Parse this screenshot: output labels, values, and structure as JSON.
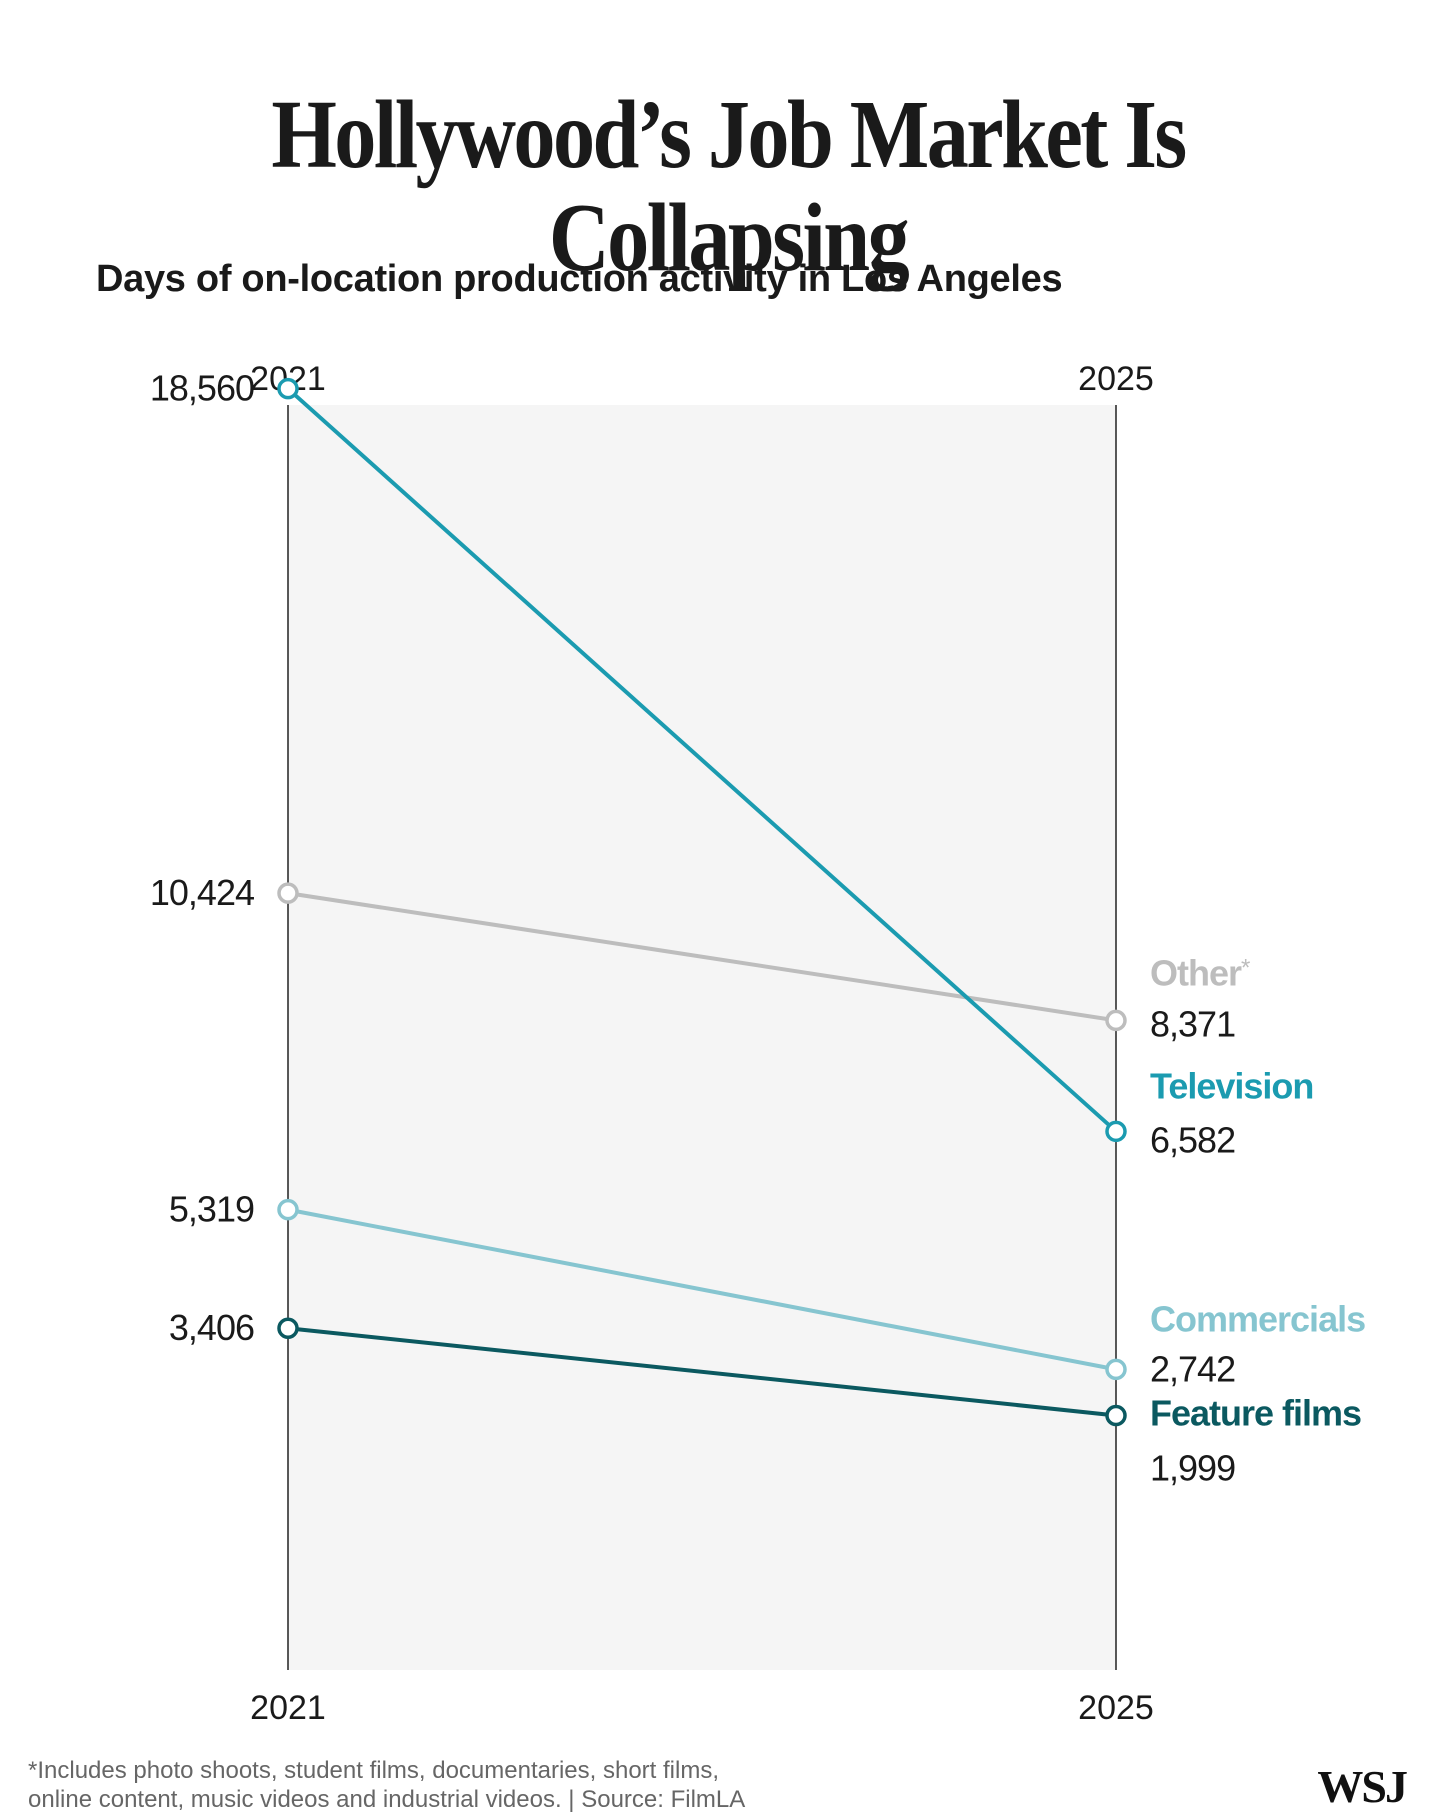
{
  "title": "Hollywood’s Job Market Is Collapsing",
  "subtitle": "Days of on-location production activity in Los Angeles",
  "footnote": {
    "line1": "*Includes photo shoots, student films, documentaries, short films,",
    "line2": "online content, music videos and industrial videos. | Source: FilmLA"
  },
  "logo": "WSJ",
  "chart_data": {
    "type": "line",
    "x": [
      "2021",
      "2025"
    ],
    "ylim": [
      0,
      19200
    ],
    "grid": false,
    "series": [
      {
        "name": "Other",
        "marker": "*",
        "values": [
          10424,
          8371
        ],
        "value_labels": [
          "10,424",
          "8,371"
        ],
        "color": "#bdbdbd",
        "label_color": "#bdbdbd"
      },
      {
        "name": "Television",
        "values": [
          18560,
          6582
        ],
        "value_labels": [
          "18,560",
          "6,582"
        ],
        "color": "#1b9bb0",
        "label_color": "#1b9bb0"
      },
      {
        "name": "Commercials",
        "values": [
          5319,
          2742
        ],
        "value_labels": [
          "5,319",
          "2,742"
        ],
        "color": "#86c5d0",
        "label_color": "#86c5d0"
      },
      {
        "name": "Feature films",
        "values": [
          3406,
          1999
        ],
        "value_labels": [
          "3,406",
          "1,999"
        ],
        "color": "#0b5960",
        "label_color": "#0b5960"
      }
    ]
  }
}
